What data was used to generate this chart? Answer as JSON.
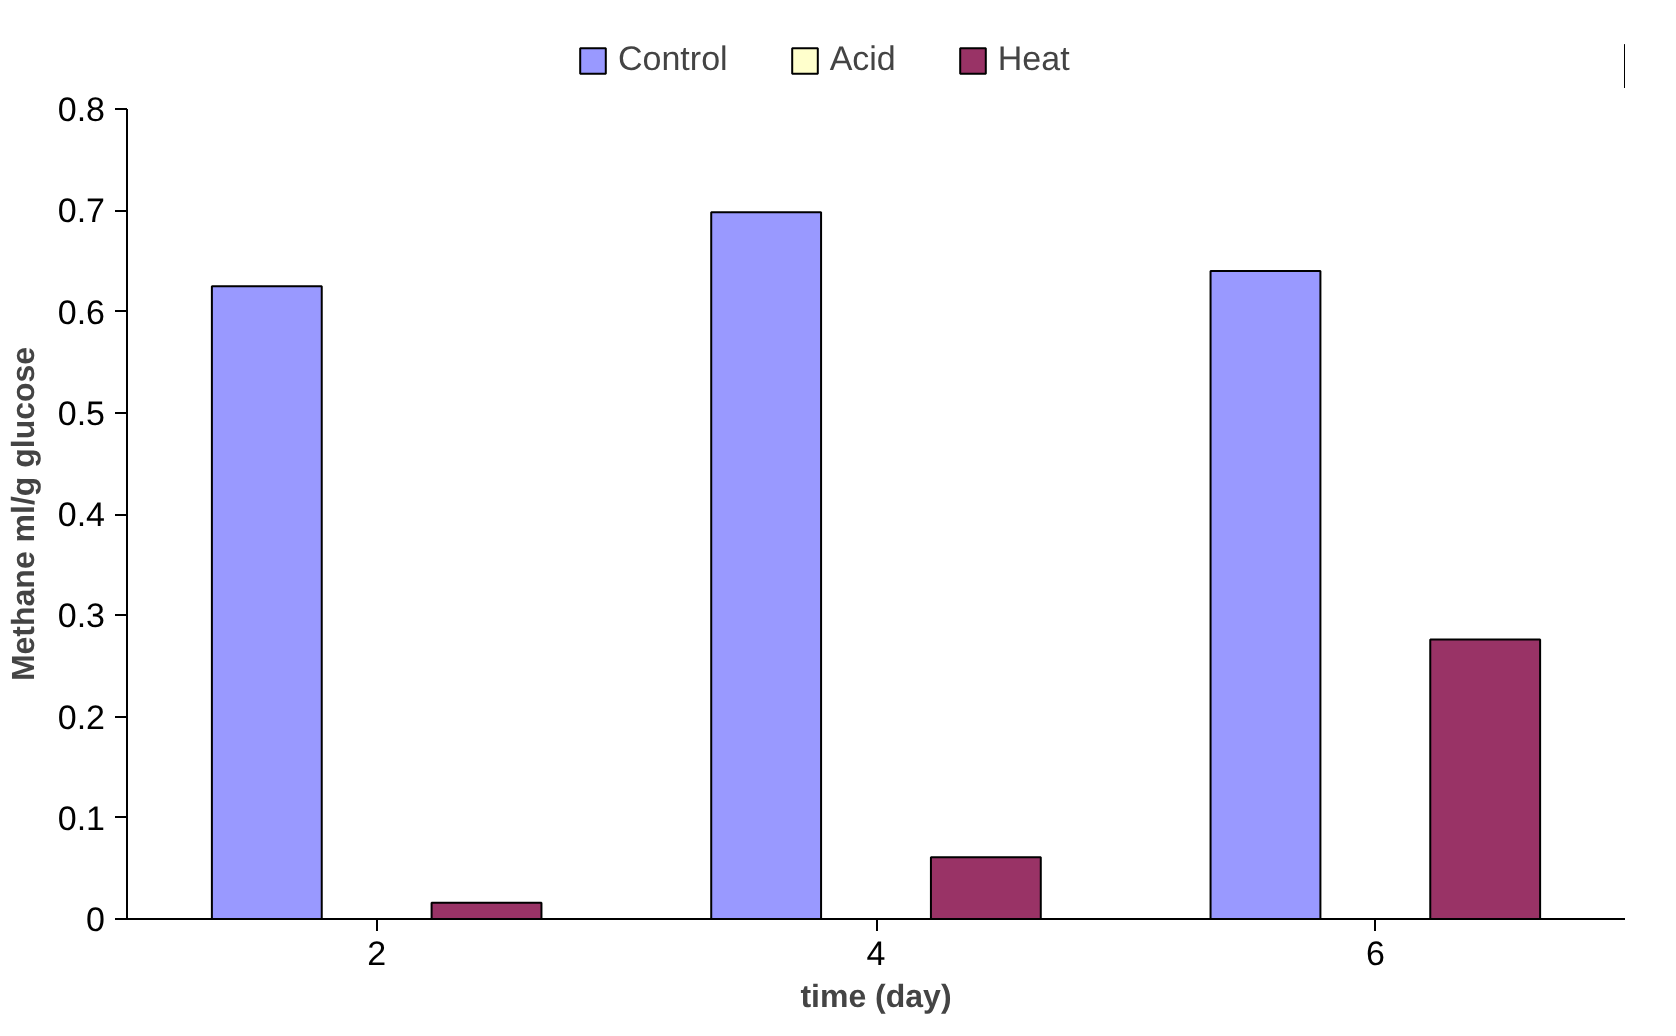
{
  "chart_data": {
    "type": "bar",
    "xlabel": "time (day)",
    "ylabel": "Methane ml/g glucose",
    "categories": [
      "2",
      "4",
      "6"
    ],
    "series": [
      {
        "name": "Control",
        "color": "#9999ff",
        "values": [
          0.625,
          0.698,
          0.64
        ]
      },
      {
        "name": "Acid",
        "color": "#ffffcc",
        "values": [
          0,
          0,
          0
        ]
      },
      {
        "name": "Heat",
        "color": "#993366",
        "values": [
          0.016,
          0.061,
          0.276
        ]
      }
    ],
    "ylim": [
      0,
      0.8
    ],
    "yticks": [
      0,
      0.1,
      0.2,
      0.3,
      0.4,
      0.5,
      0.6,
      0.7,
      0.8
    ],
    "grid": false,
    "legend": "top"
  }
}
